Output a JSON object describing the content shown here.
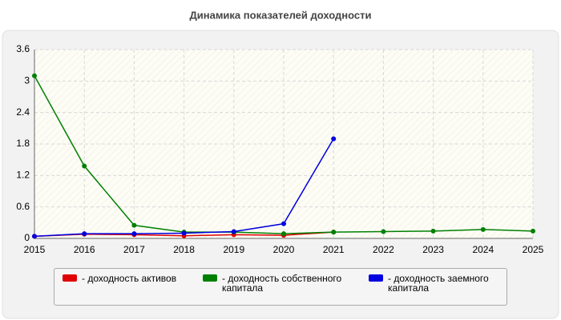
{
  "chart_data": {
    "type": "line",
    "title": "Динамика показателей доходности",
    "x": [
      2015,
      2016,
      2017,
      2018,
      2019,
      2020,
      2021,
      2022,
      2023,
      2024,
      2025
    ],
    "series": [
      {
        "name": "- доходность активов",
        "color": "#e00000",
        "values": [
          0.04,
          0.08,
          0.07,
          0.05,
          0.07,
          0.06,
          0.12,
          null,
          null,
          null,
          null
        ]
      },
      {
        "name": "- доходность собственного капитала",
        "color": "#008000",
        "values": [
          3.1,
          1.38,
          0.25,
          0.12,
          0.12,
          0.09,
          0.12,
          0.13,
          0.14,
          0.17,
          0.14
        ]
      },
      {
        "name": "- доходность заемного капитала",
        "color": "#0000e0",
        "values": [
          0.04,
          0.09,
          0.09,
          0.1,
          0.13,
          0.28,
          1.9,
          null,
          null,
          null,
          null
        ]
      }
    ],
    "xlim": [
      2015,
      2025
    ],
    "xticks": [
      2015,
      2016,
      2017,
      2018,
      2019,
      2020,
      2021,
      2022,
      2023,
      2024,
      2025
    ],
    "ylim": [
      0,
      3.6
    ],
    "yticks": [
      0,
      0.6,
      1.2,
      1.8,
      2.4,
      3,
      3.6
    ],
    "grid": true
  }
}
